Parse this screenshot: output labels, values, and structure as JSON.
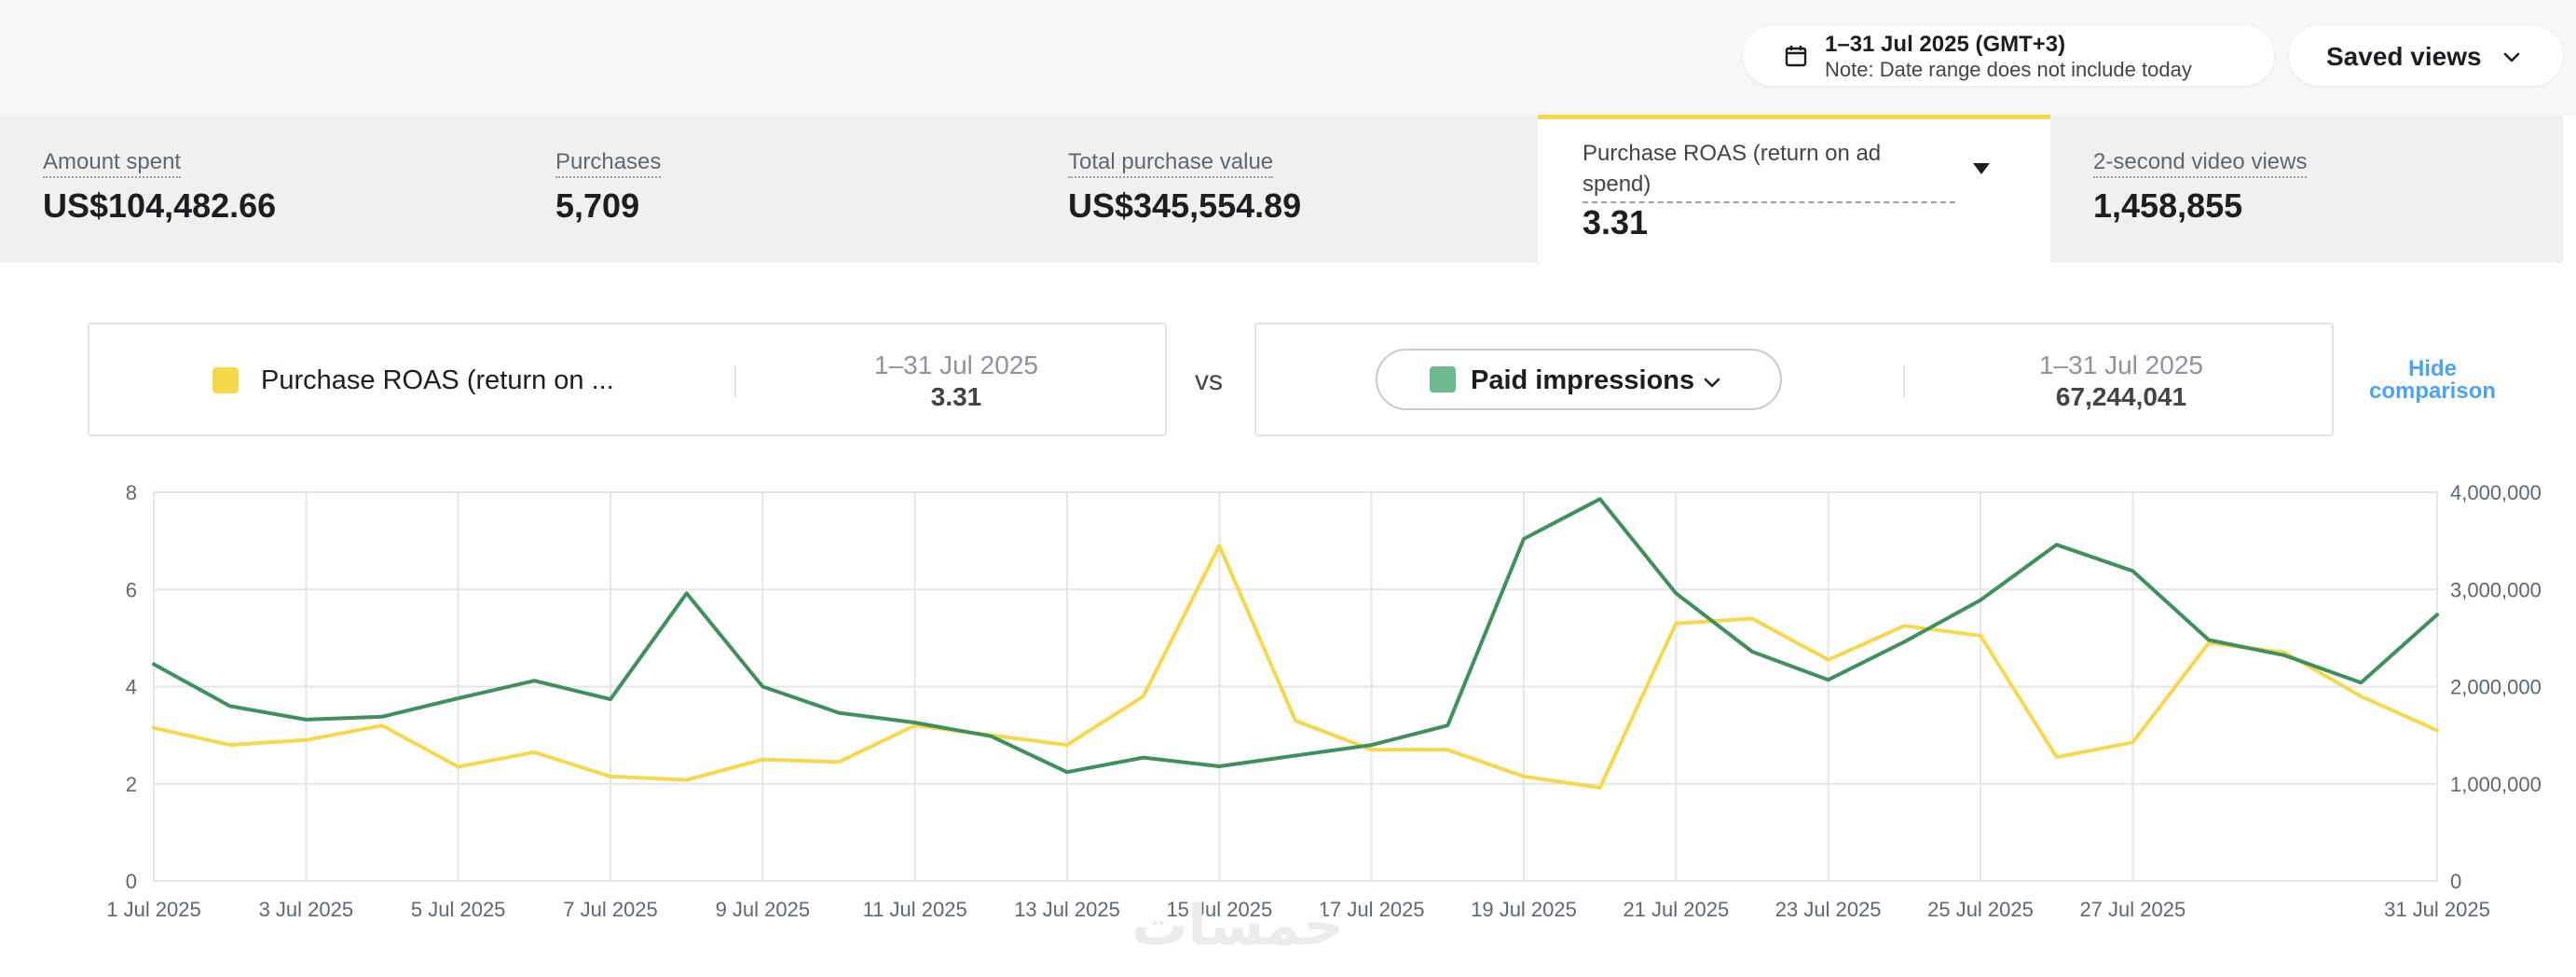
{
  "header": {
    "date_range": "1–31 Jul 2025 (GMT+3)",
    "date_note": "Note: Date range does not include today",
    "saved_views_label": "Saved views"
  },
  "metrics": [
    {
      "label": "Amount spent",
      "value": "US$104,482.66",
      "selected": false
    },
    {
      "label": "Purchases",
      "value": "5,709",
      "selected": false
    },
    {
      "label": "Total purchase value",
      "value": "US$345,554.89",
      "selected": false
    },
    {
      "label": "Purchase ROAS (return on ad spend)",
      "value": "3.31",
      "selected": true
    },
    {
      "label": "2-second video views",
      "value": "1,458,855",
      "selected": false
    }
  ],
  "comparison": {
    "left": {
      "metric_label": "Purchase ROAS (return on ...",
      "date": "1–31 Jul 2025",
      "value": "3.31",
      "color": "#f5d94a"
    },
    "vs_label": "vs",
    "right": {
      "metric_label": "Paid impressions",
      "date": "1–31 Jul 2025",
      "value": "67,244,041",
      "color": "#6fb98f"
    },
    "hide_label_line1": "Hide",
    "hide_label_line2": "comparison"
  },
  "watermark": "خمسات",
  "chart_data": {
    "type": "line",
    "x": [
      "1 Jul 2025",
      "2 Jul 2025",
      "3 Jul 2025",
      "4 Jul 2025",
      "5 Jul 2025",
      "6 Jul 2025",
      "7 Jul 2025",
      "8 Jul 2025",
      "9 Jul 2025",
      "10 Jul 2025",
      "11 Jul 2025",
      "12 Jul 2025",
      "13 Jul 2025",
      "14 Jul 2025",
      "15 Jul 2025",
      "16 Jul 2025",
      "17 Jul 2025",
      "18 Jul 2025",
      "19 Jul 2025",
      "20 Jul 2025",
      "21 Jul 2025",
      "22 Jul 2025",
      "23 Jul 2025",
      "24 Jul 2025",
      "25 Jul 2025",
      "26 Jul 2025",
      "27 Jul 2025",
      "28 Jul 2025",
      "29 Jul 2025",
      "30 Jul 2025",
      "31 Jul 2025"
    ],
    "x_tick_labels": [
      "1 Jul 2025",
      "3 Jul 2025",
      "5 Jul 2025",
      "7 Jul 2025",
      "9 Jul 2025",
      "11 Jul 2025",
      "13 Jul 2025",
      "15 Jul 2025",
      "17 Jul 2025",
      "19 Jul 2025",
      "21 Jul 2025",
      "23 Jul 2025",
      "25 Jul 2025",
      "27 Jul 2025",
      "31 Jul 2025"
    ],
    "y_left": {
      "ticks": [
        "0",
        "2",
        "4",
        "6",
        "8"
      ],
      "lim": [
        0,
        8
      ]
    },
    "y_right": {
      "ticks": [
        "0",
        "1,000,000",
        "2,000,000",
        "3,000,000",
        "4,000,000"
      ],
      "lim": [
        0,
        4000000
      ]
    },
    "grid": true,
    "series": [
      {
        "name": "Purchase ROAS (return on ad spend)",
        "axis": "left",
        "color": "#f5d94a",
        "values": [
          3.15,
          2.8,
          2.9,
          3.2,
          2.35,
          2.65,
          2.15,
          2.08,
          2.5,
          2.45,
          3.2,
          3.0,
          2.8,
          3.8,
          6.9,
          3.3,
          2.7,
          2.7,
          2.15,
          1.92,
          5.3,
          5.4,
          4.55,
          5.25,
          5.05,
          2.55,
          2.85,
          4.9,
          4.7,
          3.8,
          3.1
        ]
      },
      {
        "name": "Paid impressions",
        "axis": "right",
        "color": "#3f8f5f",
        "values": [
          2230000,
          1800000,
          1660000,
          1690000,
          1880000,
          2060000,
          1870000,
          2960000,
          2000000,
          1730000,
          1630000,
          1490000,
          1120000,
          1270000,
          1180000,
          1290000,
          1400000,
          1600000,
          3520000,
          3930000,
          2960000,
          2360000,
          2070000,
          2460000,
          2890000,
          3460000,
          3190000,
          2480000,
          2320000,
          2040000,
          2740000
        ]
      }
    ]
  }
}
